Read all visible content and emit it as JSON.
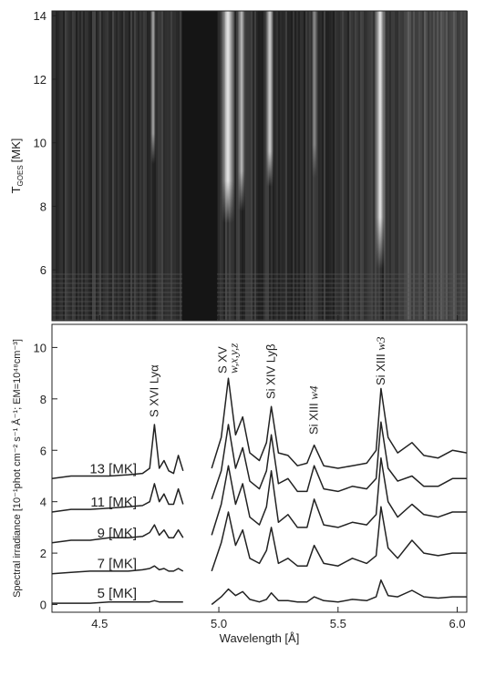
{
  "chart_data": [
    {
      "type": "image",
      "ylabel": "T",
      "ylabel_sub": "GOES",
      "ylabel_unit": "[MK]",
      "xlim": [
        4.3,
        6.04
      ],
      "xticks": [
        4.5,
        5.0,
        5.5,
        6.0
      ],
      "ylim": [
        4.4,
        14.15
      ],
      "yticks": [
        6,
        8,
        10,
        12,
        14
      ]
    },
    {
      "type": "line",
      "xlabel": "Wavelength [Å]",
      "ylabel": "Spectral irradiance [10⁻¹phot cm⁻² s⁻¹ Å⁻¹; EM=10⁴⁸cm⁻³]",
      "xlim": [
        4.3,
        6.04
      ],
      "xticks": [
        {
          "value": 4.5,
          "label": "4.5"
        },
        {
          "value": 5.0,
          "label": "5.0"
        },
        {
          "value": 5.5,
          "label": "5.5"
        },
        {
          "value": 6.0,
          "label": "6.0"
        }
      ],
      "ylim": [
        -0.3,
        10.9
      ],
      "yticks": [
        0,
        2,
        4,
        6,
        8,
        10
      ],
      "x": [
        4.3,
        4.38,
        4.46,
        4.54,
        4.62,
        4.68,
        4.71,
        4.73,
        4.75,
        4.77,
        4.79,
        4.81,
        4.83,
        4.85,
        4.9,
        4.97,
        5.01,
        5.04,
        5.07,
        5.1,
        5.13,
        5.17,
        5.2,
        5.22,
        5.25,
        5.29,
        5.33,
        5.37,
        5.4,
        5.44,
        5.5,
        5.56,
        5.62,
        5.66,
        5.68,
        5.71,
        5.75,
        5.81,
        5.86,
        5.92,
        5.98,
        6.04
      ],
      "series": [
        {
          "name": "13 [MK]",
          "color": "#222222",
          "values": [
            4.9,
            5.0,
            5.0,
            5.0,
            5.05,
            5.1,
            5.3,
            7.0,
            5.3,
            5.6,
            5.2,
            5.1,
            5.8,
            5.2,
            null,
            5.3,
            6.5,
            8.8,
            6.6,
            7.3,
            5.9,
            5.6,
            6.3,
            7.7,
            5.9,
            5.8,
            5.4,
            5.5,
            6.2,
            5.4,
            5.3,
            5.4,
            5.5,
            6.0,
            8.4,
            6.5,
            5.9,
            6.3,
            5.8,
            5.7,
            6.0,
            5.9
          ]
        },
        {
          "name": "11 [MK]",
          "color": "#222222",
          "values": [
            3.6,
            3.7,
            3.7,
            3.75,
            3.8,
            3.85,
            4.0,
            4.7,
            4.0,
            4.3,
            3.9,
            3.9,
            4.5,
            3.9,
            null,
            4.1,
            5.2,
            7.0,
            5.3,
            6.1,
            4.8,
            4.5,
            5.2,
            6.6,
            4.7,
            4.9,
            4.4,
            4.4,
            5.4,
            4.5,
            4.4,
            4.6,
            4.5,
            4.9,
            7.1,
            5.3,
            4.8,
            5.0,
            4.6,
            4.6,
            4.9,
            4.9
          ]
        },
        {
          "name": "9 [MK]",
          "color": "#222222",
          "values": [
            2.4,
            2.5,
            2.5,
            2.6,
            2.6,
            2.65,
            2.8,
            3.1,
            2.7,
            2.9,
            2.6,
            2.6,
            2.9,
            2.6,
            null,
            2.7,
            3.9,
            5.4,
            3.9,
            4.7,
            3.4,
            3.1,
            3.8,
            5.2,
            3.2,
            3.5,
            3.0,
            3.0,
            4.1,
            3.1,
            3.0,
            3.2,
            3.1,
            3.5,
            5.7,
            4.0,
            3.4,
            3.9,
            3.5,
            3.4,
            3.6,
            3.6
          ]
        },
        {
          "name": "7 [MK]",
          "color": "#222222",
          "values": [
            1.2,
            1.25,
            1.3,
            1.3,
            1.3,
            1.35,
            1.4,
            1.5,
            1.35,
            1.4,
            1.3,
            1.3,
            1.4,
            1.3,
            null,
            1.3,
            2.4,
            3.6,
            2.3,
            2.9,
            1.8,
            1.6,
            2.1,
            3.0,
            1.6,
            1.8,
            1.5,
            1.5,
            2.3,
            1.6,
            1.5,
            1.8,
            1.6,
            1.9,
            3.8,
            2.2,
            1.8,
            2.5,
            2.0,
            1.9,
            2.0,
            2.0
          ]
        },
        {
          "name": "5 [MK]",
          "color": "#222222",
          "values": [
            0.05,
            0.05,
            0.05,
            0.1,
            0.1,
            0.1,
            0.1,
            0.15,
            0.1,
            0.1,
            0.1,
            0.1,
            0.1,
            0.1,
            null,
            0.0,
            0.3,
            0.6,
            0.35,
            0.5,
            0.2,
            0.1,
            0.2,
            0.45,
            0.15,
            0.15,
            0.1,
            0.1,
            0.3,
            0.15,
            0.1,
            0.2,
            0.15,
            0.3,
            0.95,
            0.35,
            0.3,
            0.55,
            0.3,
            0.25,
            0.3,
            0.3
          ]
        }
      ],
      "annotations": [
        {
          "text": "S XVI Lyα",
          "x": 4.73
        },
        {
          "text": "S XV",
          "italic": "w,x,y,z",
          "x": 5.04,
          "layout": "two-line"
        },
        {
          "text": "Si XIV Lyβ",
          "x": 5.22
        },
        {
          "text": "Si XIII ",
          "italic": "w4",
          "x": 5.4
        },
        {
          "text": "Si XIII ",
          "italic": "w3",
          "x": 5.68
        }
      ]
    }
  ]
}
